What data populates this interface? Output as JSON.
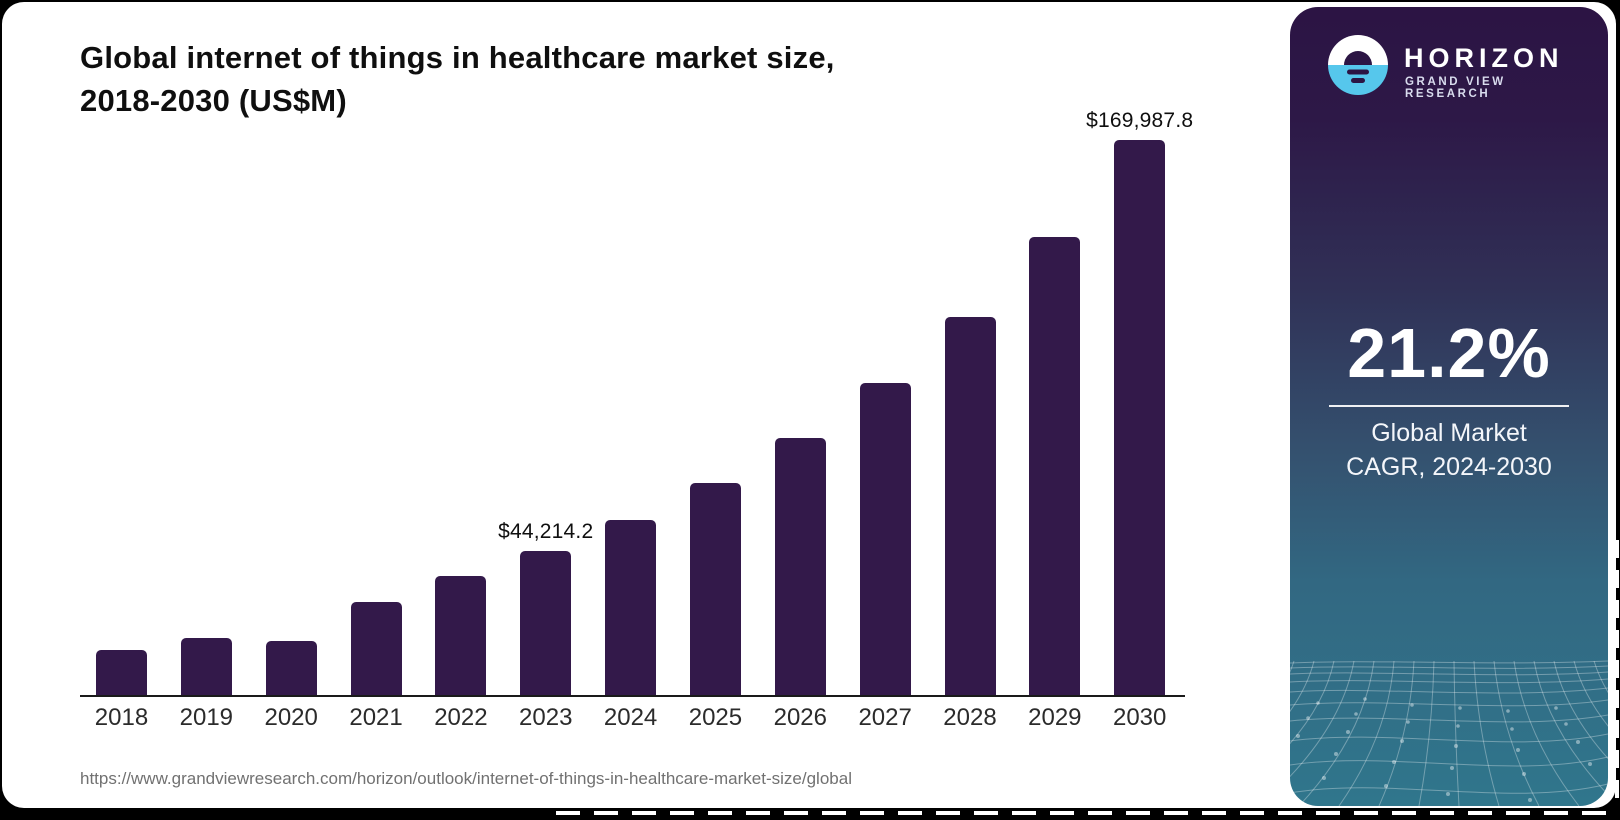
{
  "header": {
    "title_line1": "Global internet of things in healthcare market size,",
    "title_line2": "2018-2030 (US$M)"
  },
  "footer": {
    "source_url": "https://www.grandviewresearch.com/horizon/outlook/internet-of-things-in-healthcare-market-size/global"
  },
  "sidebar": {
    "brand": {
      "logo_icon": "horizon-sunset-icon",
      "name": "HORIZON",
      "subtitle": "GRAND VIEW RESEARCH",
      "logo_blue": "#56c7ec",
      "logo_dark": "#2c1544"
    },
    "stat": {
      "value": "21.2%",
      "label_line1": "Global Market",
      "label_line2": "CAGR, 2024-2030"
    },
    "gradient_top": "#2c1444",
    "gradient_bottom": "#30768c"
  },
  "chart_data": {
    "type": "bar",
    "title": "Global internet of things in healthcare market size, 2018-2030 (US$M)",
    "xlabel": "",
    "ylabel": "US$M",
    "categories": [
      "2018",
      "2019",
      "2020",
      "2021",
      "2022",
      "2023",
      "2024",
      "2025",
      "2026",
      "2027",
      "2028",
      "2029",
      "2030"
    ],
    "values": [
      13800,
      17500,
      16600,
      28500,
      36500,
      44214.2,
      53600,
      65000,
      78700,
      95500,
      115900,
      140300,
      169987.8
    ],
    "data_labels": {
      "2023": "$44,214.2",
      "2030": "$169,987.8"
    },
    "bar_color": "#33194a",
    "ylim": [
      0,
      170000
    ],
    "grid": false,
    "legend": false,
    "axis_color": "#1a1a1a"
  }
}
